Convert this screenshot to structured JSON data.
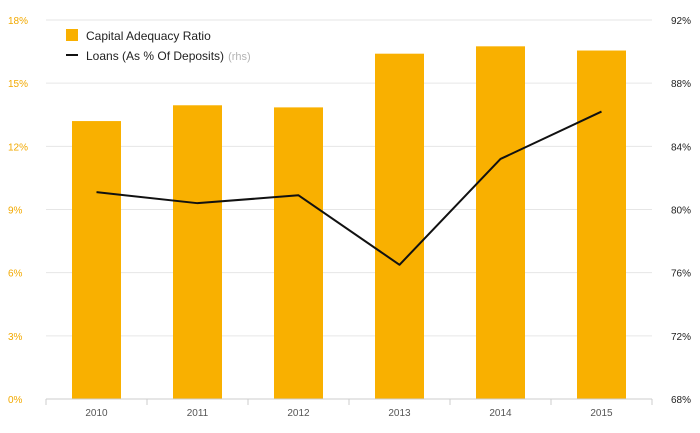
{
  "chart_data": {
    "type": "bar",
    "categories": [
      "2010",
      "2011",
      "2012",
      "2013",
      "2014",
      "2015"
    ],
    "series": [
      {
        "name": "Capital Adequacy Ratio",
        "type": "bar",
        "axis": "left",
        "color": "#f9b000",
        "values": [
          13.2,
          13.95,
          13.85,
          16.4,
          16.75,
          16.55
        ]
      },
      {
        "name": "Loans (As % Of Deposits)",
        "name_suffix": "(rhs)",
        "type": "line",
        "axis": "right",
        "color": "#111111",
        "values": [
          81.1,
          80.4,
          80.9,
          76.5,
          83.2,
          86.2
        ]
      }
    ],
    "y_left": {
      "lim": [
        0,
        18
      ],
      "ticks": [
        0,
        3,
        6,
        9,
        12,
        15,
        18
      ],
      "tick_labels": [
        "0%",
        "3%",
        "6%",
        "9%",
        "12%",
        "15%",
        "18%"
      ]
    },
    "y_right": {
      "lim": [
        68,
        92
      ],
      "ticks": [
        68,
        72,
        76,
        80,
        84,
        88,
        92
      ],
      "tick_labels": [
        "68%",
        "72%",
        "76%",
        "80%",
        "84%",
        "88%",
        "92%"
      ]
    },
    "grid": true,
    "legend_position": "top-left",
    "title": "",
    "xlabel": "",
    "ylabel": ""
  }
}
